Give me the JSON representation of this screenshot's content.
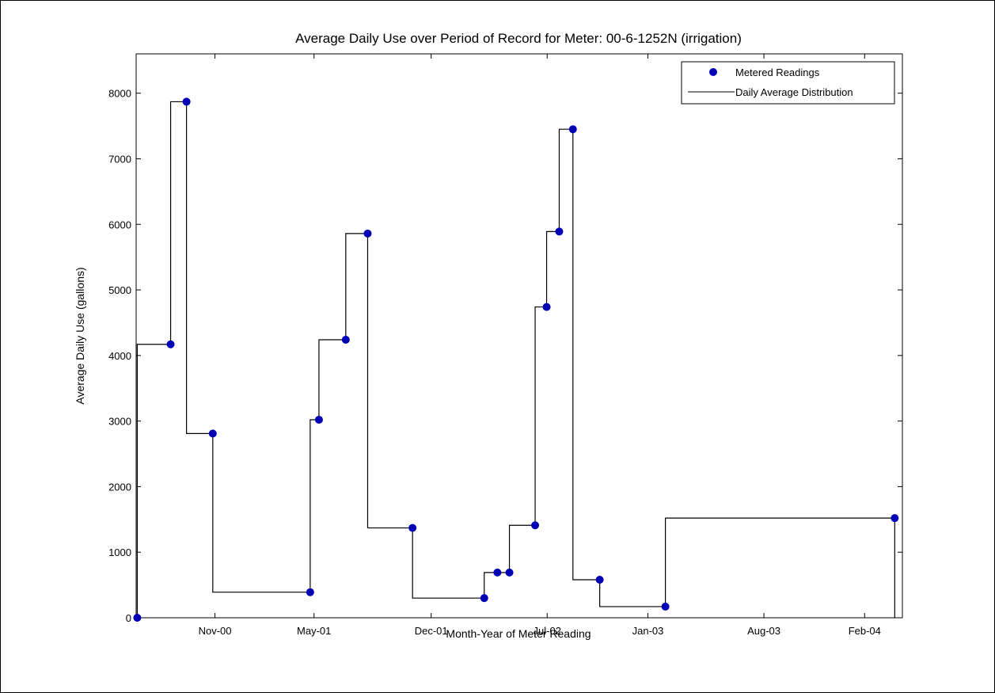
{
  "chart_data": {
    "type": "scatter",
    "title": "Average Daily Use over Period of Record for Meter: 00-6-1252N (irrigation)",
    "xlabel": "Month-Year of Meter Reading",
    "ylabel": "Average Daily Use (gallons)",
    "ylim": [
      0,
      8600
    ],
    "xlim": [
      "2000-06-10",
      "2004-04-10"
    ],
    "x_ticks": [
      {
        "date": "2000-11-01",
        "label": "Nov-00"
      },
      {
        "date": "2001-05-01",
        "label": "May-01"
      },
      {
        "date": "2001-12-01",
        "label": "Dec-01"
      },
      {
        "date": "2002-07-01",
        "label": "Jul-02"
      },
      {
        "date": "2003-01-01",
        "label": "Jan-03"
      },
      {
        "date": "2003-08-01",
        "label": "Aug-03"
      },
      {
        "date": "2004-02-01",
        "label": "Feb-04"
      }
    ],
    "y_ticks": [
      0,
      1000,
      2000,
      3000,
      4000,
      5000,
      6000,
      7000,
      8000
    ],
    "grid": false,
    "legend_position": "top-right",
    "series": [
      {
        "name": "Metered Readings",
        "style": "markers",
        "color": "#0000b4",
        "points": [
          {
            "x": "2000-06-12",
            "y": 0
          },
          {
            "x": "2000-08-12",
            "y": 4170
          },
          {
            "x": "2000-09-10",
            "y": 7870
          },
          {
            "x": "2000-10-28",
            "y": 2810
          },
          {
            "x": "2001-04-24",
            "y": 390
          },
          {
            "x": "2001-05-10",
            "y": 3020
          },
          {
            "x": "2001-06-28",
            "y": 4240
          },
          {
            "x": "2001-08-07",
            "y": 5860
          },
          {
            "x": "2001-10-28",
            "y": 1370
          },
          {
            "x": "2002-03-08",
            "y": 300
          },
          {
            "x": "2002-04-01",
            "y": 690
          },
          {
            "x": "2002-04-23",
            "y": 690
          },
          {
            "x": "2002-06-09",
            "y": 1410
          },
          {
            "x": "2002-06-30",
            "y": 4740
          },
          {
            "x": "2002-07-23",
            "y": 5890
          },
          {
            "x": "2002-08-17",
            "y": 7450
          },
          {
            "x": "2002-10-05",
            "y": 580
          },
          {
            "x": "2003-02-02",
            "y": 170
          },
          {
            "x": "2004-03-27",
            "y": 1520
          }
        ]
      },
      {
        "name": "Daily Average Distribution",
        "style": "step",
        "color": "#000000"
      }
    ]
  },
  "colors": {
    "marker": "#0000b4",
    "line": "#000000",
    "background": "#ffffff"
  }
}
